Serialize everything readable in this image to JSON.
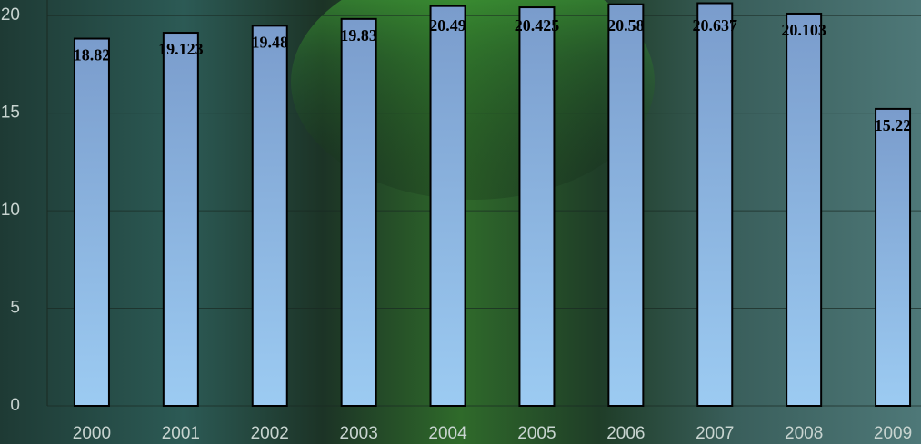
{
  "chart_data": {
    "type": "bar",
    "categories": [
      "2000",
      "2001",
      "2002",
      "2003",
      "2004",
      "2005",
      "2006",
      "2007",
      "2008",
      "2009"
    ],
    "values": [
      18.82,
      19.123,
      19.48,
      19.83,
      20.49,
      20.425,
      20.58,
      20.637,
      20.103,
      15.22
    ],
    "color": "#8db4e2",
    "ylim": [
      0,
      20.8
    ],
    "yticks": [
      0,
      5,
      10,
      15,
      20
    ],
    "grid": true
  }
}
